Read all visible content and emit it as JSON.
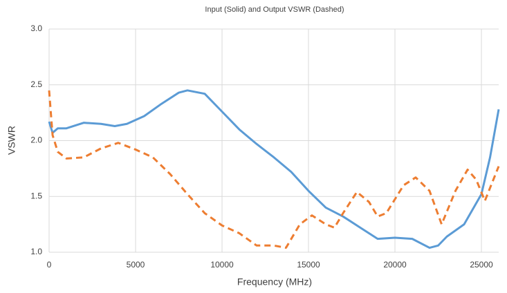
{
  "chart_data": {
    "type": "line",
    "title": "Input (Solid) and Output VSWR (Dashed)",
    "x_label": "Frequency (MHz)",
    "y_label": "VSWR",
    "xlim": [
      0,
      26000
    ],
    "xticks": [
      0,
      5000,
      10000,
      15000,
      20000,
      25000
    ],
    "ylim": [
      1,
      3
    ],
    "yticks": [
      {
        "value": 1,
        "label": "1.0"
      },
      {
        "value": 1.5,
        "label": "1.5"
      },
      {
        "value": 2,
        "label": "2.0"
      },
      {
        "value": 2.5,
        "label": "2.5"
      },
      {
        "value": 3,
        "label": "3.0"
      }
    ],
    "grid": true,
    "series": [
      {
        "color": "#5b9bd5",
        "dash": false,
        "x": [
          0,
          200,
          500,
          1000,
          2000,
          3000,
          3800,
          4500,
          5500,
          6500,
          7500,
          8000,
          9000,
          10000,
          11000,
          12000,
          13000,
          14000,
          15000,
          16000,
          17000,
          18000,
          19000,
          20000,
          21000,
          22000,
          22500,
          23000,
          24000,
          25000,
          25500,
          26000
        ],
        "values": [
          2.17,
          2.07,
          2.11,
          2.11,
          2.16,
          2.15,
          2.13,
          2.15,
          2.22,
          2.33,
          2.43,
          2.45,
          2.42,
          2.26,
          2.1,
          1.97,
          1.85,
          1.72,
          1.55,
          1.4,
          1.32,
          1.22,
          1.12,
          1.13,
          1.12,
          1.04,
          1.06,
          1.14,
          1.25,
          1.52,
          1.85,
          2.28
        ]
      },
      {
        "color": "#ed7d31",
        "dash": true,
        "x": [
          0,
          200,
          500,
          1000,
          2000,
          3000,
          4000,
          5000,
          6000,
          7000,
          8000,
          9000,
          10000,
          11000,
          12000,
          13000,
          13700,
          14500,
          15200,
          16000,
          16500,
          17000,
          17800,
          18500,
          19000,
          19500,
          20500,
          21200,
          22000,
          22700,
          23500,
          24200,
          24700,
          25200,
          26000
        ],
        "values": [
          2.45,
          2.05,
          1.9,
          1.84,
          1.85,
          1.93,
          1.98,
          1.92,
          1.85,
          1.7,
          1.52,
          1.35,
          1.24,
          1.17,
          1.06,
          1.06,
          1.04,
          1.25,
          1.33,
          1.25,
          1.22,
          1.35,
          1.54,
          1.45,
          1.32,
          1.35,
          1.6,
          1.67,
          1.55,
          1.25,
          1.55,
          1.74,
          1.65,
          1.46,
          1.77
        ]
      }
    ]
  }
}
